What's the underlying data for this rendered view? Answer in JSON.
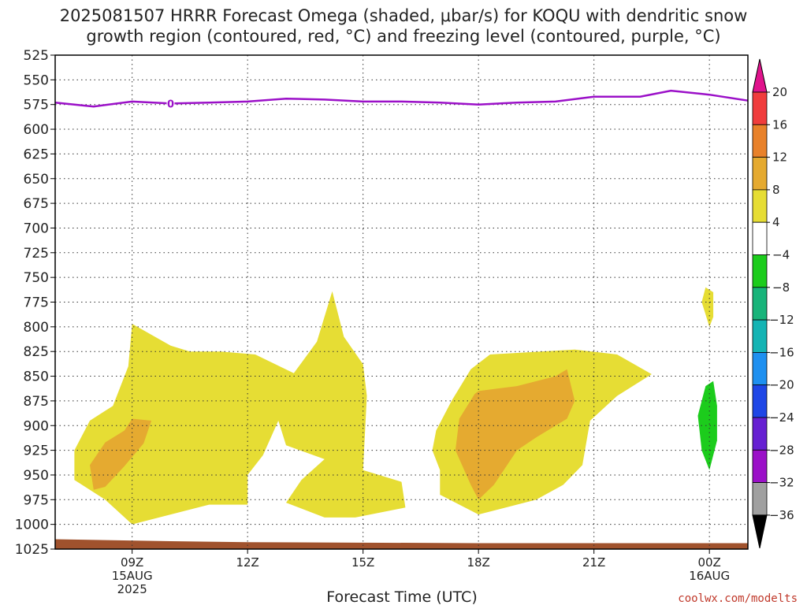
{
  "chart_data": {
    "type": "heatmap",
    "title_lines": [
      "2025081507 HRRR Forecast Omega (shaded, μbar/s) for KOQU with dendritic snow",
      "growth region (contoured, red, °C) and freezing level (contoured, purple, °C)"
    ],
    "xlabel": "Forecast Time (UTC)",
    "credit": "coolwx.com/modelts",
    "x_range": [
      7.0,
      25.0
    ],
    "y_range": [
      525,
      1025
    ],
    "y_ticks": [
      525,
      550,
      575,
      600,
      625,
      650,
      675,
      700,
      725,
      750,
      775,
      800,
      825,
      850,
      875,
      900,
      925,
      950,
      975,
      1000,
      1025
    ],
    "x_ticks": [
      {
        "x": 9,
        "lines": [
          "09Z",
          "15AUG",
          "2025"
        ]
      },
      {
        "x": 12,
        "lines": [
          "12Z"
        ]
      },
      {
        "x": 15,
        "lines": [
          "15Z"
        ]
      },
      {
        "x": 18,
        "lines": [
          "18Z"
        ]
      },
      {
        "x": 21,
        "lines": [
          "21Z"
        ]
      },
      {
        "x": 24,
        "lines": [
          "00Z",
          "16AUG"
        ]
      }
    ],
    "grid": true,
    "colorbar": {
      "labels": [
        "20",
        "16",
        "12",
        "8",
        "4",
        "−4",
        "−8",
        "−12",
        "−16",
        "−20",
        "−24",
        "−28",
        "−32",
        "−36"
      ],
      "colors": [
        "#f03c3c",
        "#e8812a",
        "#e5aa30",
        "#e6dd34",
        "#ffffff",
        "#1ccc1c",
        "#18b47a",
        "#14b4b4",
        "#1e90f0",
        "#1e46e6",
        "#6620d2",
        "#9b10c8",
        "#a0a0a0"
      ],
      "top_arrow_color": "#e0138c",
      "bottom_arrow_color": "#000000"
    },
    "freezing_level": {
      "color": "#9b10c8",
      "x": [
        7.0,
        8.0,
        9.0,
        10.0,
        11.0,
        12.0,
        13.0,
        14.0,
        15.0,
        16.0,
        17.0,
        18.0,
        19.0,
        20.0,
        21.0,
        21.6,
        22.2,
        23.0,
        24.0,
        25.0
      ],
      "pressure": [
        573,
        577,
        572,
        574,
        573,
        572,
        569,
        570,
        572,
        572,
        573,
        575,
        573,
        572,
        567,
        567,
        567,
        561,
        565,
        571
      ],
      "label": "0"
    },
    "omega_regions": [
      {
        "level": "4 to 8",
        "color": "#e6dd34",
        "polygon": [
          [
            8.3,
            975
          ],
          [
            7.5,
            955
          ],
          [
            7.5,
            925
          ],
          [
            7.9,
            895
          ],
          [
            8.5,
            880
          ],
          [
            8.9,
            840
          ],
          [
            9.0,
            797
          ],
          [
            10.0,
            819
          ],
          [
            10.5,
            825
          ],
          [
            11.3,
            825
          ],
          [
            12.2,
            828
          ],
          [
            13.2,
            847
          ],
          [
            13.8,
            815
          ],
          [
            14.2,
            764
          ],
          [
            14.5,
            810
          ],
          [
            15.0,
            838
          ],
          [
            15.1,
            870
          ],
          [
            15.0,
            945
          ],
          [
            16.0,
            957
          ],
          [
            16.1,
            983
          ],
          [
            14.8,
            993
          ],
          [
            14.0,
            993
          ],
          [
            13.0,
            978
          ],
          [
            13.4,
            955
          ],
          [
            14.0,
            934
          ],
          [
            13.0,
            920
          ],
          [
            12.8,
            895
          ],
          [
            12.4,
            930
          ],
          [
            12.0,
            950
          ],
          [
            12.0,
            980
          ],
          [
            11.0,
            980
          ],
          [
            10.0,
            990
          ],
          [
            9.0,
            1000
          ]
        ]
      },
      {
        "level": "8 to 12",
        "color": "#e5aa30",
        "polygon": [
          [
            8.0,
            965
          ],
          [
            7.9,
            940
          ],
          [
            8.3,
            917
          ],
          [
            8.8,
            905
          ],
          [
            9.0,
            893
          ],
          [
            9.5,
            895
          ],
          [
            9.3,
            918
          ],
          [
            8.8,
            941
          ],
          [
            8.3,
            962
          ]
        ]
      },
      {
        "level": "4 to 8",
        "color": "#e6dd34",
        "polygon": [
          [
            17.0,
            945
          ],
          [
            16.8,
            925
          ],
          [
            16.9,
            905
          ],
          [
            17.3,
            875
          ],
          [
            17.8,
            843
          ],
          [
            18.3,
            828
          ],
          [
            20.5,
            823
          ],
          [
            21.6,
            828
          ],
          [
            22.5,
            848
          ],
          [
            21.6,
            870
          ],
          [
            20.9,
            895
          ],
          [
            20.7,
            940
          ],
          [
            20.2,
            960
          ],
          [
            19.5,
            975
          ],
          [
            18.0,
            990
          ],
          [
            17.0,
            970
          ]
        ]
      },
      {
        "level": "8 to 12",
        "color": "#e5aa30",
        "polygon": [
          [
            17.8,
            960
          ],
          [
            17.4,
            925
          ],
          [
            17.5,
            893
          ],
          [
            17.9,
            868
          ],
          [
            18.0,
            865
          ],
          [
            19.0,
            860
          ],
          [
            20.0,
            850
          ],
          [
            20.3,
            843
          ],
          [
            20.5,
            875
          ],
          [
            20.3,
            893
          ],
          [
            19.5,
            912
          ],
          [
            19.0,
            925
          ],
          [
            18.4,
            960
          ],
          [
            18.0,
            975
          ]
        ]
      },
      {
        "level": "4 to 8",
        "color": "#e6dd34",
        "polygon": [
          [
            23.9,
            760
          ],
          [
            24.1,
            765
          ],
          [
            24.1,
            790
          ],
          [
            24.0,
            800
          ],
          [
            23.8,
            775
          ]
        ]
      },
      {
        "level": "-4 to -8",
        "color": "#1ccc1c",
        "polygon": [
          [
            23.8,
            925
          ],
          [
            23.7,
            890
          ],
          [
            23.9,
            860
          ],
          [
            24.1,
            855
          ],
          [
            24.2,
            880
          ],
          [
            24.2,
            915
          ],
          [
            24.0,
            945
          ]
        ]
      }
    ],
    "terrain": {
      "color": "#a0522d",
      "top_pressure": [
        [
          7.0,
          1015
        ],
        [
          10.0,
          1017
        ],
        [
          12.0,
          1018
        ],
        [
          18.0,
          1019
        ],
        [
          21.0,
          1019
        ],
        [
          25.0,
          1019
        ]
      ]
    }
  }
}
